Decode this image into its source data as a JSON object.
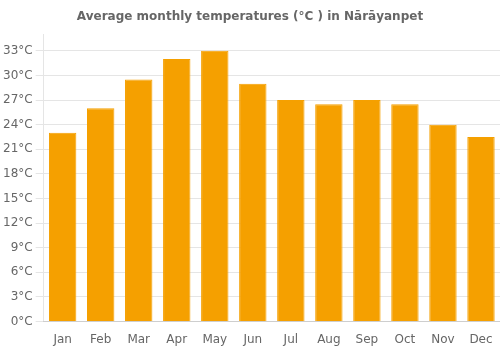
{
  "chart_data": {
    "type": "bar",
    "title": "Average monthly temperatures (°C ) in Nārāyanpet",
    "categories": [
      "Jan",
      "Feb",
      "Mar",
      "Apr",
      "May",
      "Jun",
      "Jul",
      "Aug",
      "Sep",
      "Oct",
      "Nov",
      "Dec"
    ],
    "values": [
      23.0,
      26.0,
      29.5,
      32.0,
      33.0,
      29.0,
      27.0,
      26.5,
      27.0,
      26.5,
      24.0,
      22.5
    ],
    "color": "#F5A000",
    "ylim": [
      0,
      35
    ],
    "yticks": [
      {
        "value": 0,
        "label": "0°C"
      },
      {
        "value": 3,
        "label": "3°C"
      },
      {
        "value": 6,
        "label": "6°C"
      },
      {
        "value": 9,
        "label": "9°C"
      },
      {
        "value": 12,
        "label": "12°C"
      },
      {
        "value": 15,
        "label": "15°C"
      },
      {
        "value": 18,
        "label": "18°C"
      },
      {
        "value": 21,
        "label": "21°C"
      },
      {
        "value": 24,
        "label": "24°C"
      },
      {
        "value": 27,
        "label": "27°C"
      },
      {
        "value": 30,
        "label": "30°C"
      },
      {
        "value": 33,
        "label": "33°C"
      }
    ],
    "grid": true
  }
}
